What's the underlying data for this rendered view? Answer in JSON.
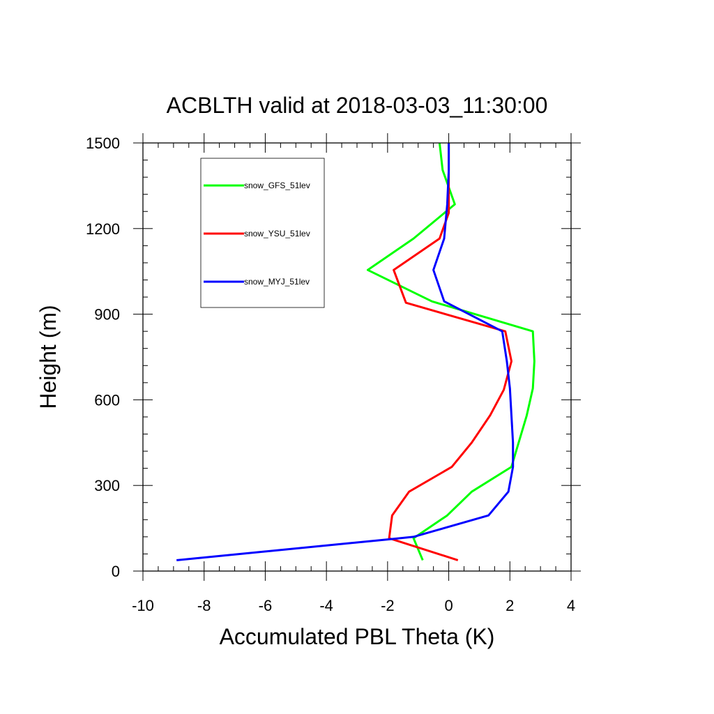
{
  "chart_data": {
    "type": "line",
    "title": "ACBLTH valid at 2018-03-03_11:30:00",
    "xlabel": "Accumulated PBL Theta (K)",
    "ylabel": "Height (m)",
    "xlim": [
      -10,
      4
    ],
    "ylim": [
      0,
      1500
    ],
    "xticks": [
      -10,
      -8,
      -6,
      -4,
      -2,
      0,
      2,
      4
    ],
    "yticks": [
      0,
      300,
      600,
      900,
      1200,
      1500
    ],
    "xtick_labels": [
      "-10",
      "-8",
      "-6",
      "-4",
      "-2",
      "0",
      "2",
      "4"
    ],
    "ytick_labels": [
      "0",
      "300",
      "600",
      "900",
      "1200",
      "1500"
    ],
    "legend_position": "top-left",
    "grid": false,
    "series": [
      {
        "name": "snow_GFS_51lev",
        "color": "#00ff00",
        "points": [
          [
            -0.85,
            38
          ],
          [
            -1.15,
            115
          ],
          [
            -0.05,
            195
          ],
          [
            0.75,
            278
          ],
          [
            2.05,
            365
          ],
          [
            2.55,
            545
          ],
          [
            2.75,
            640
          ],
          [
            2.8,
            735
          ],
          [
            2.75,
            840
          ],
          [
            -0.55,
            945
          ],
          [
            -2.65,
            1055
          ],
          [
            -1.15,
            1165
          ],
          [
            0.2,
            1285
          ],
          [
            -0.2,
            1405
          ],
          [
            -0.3,
            1500
          ]
        ]
      },
      {
        "name": "snow_YSU_51lev",
        "color": "#ff0000",
        "points": [
          [
            0.3,
            38
          ],
          [
            -1.95,
            115
          ],
          [
            -1.85,
            195
          ],
          [
            -1.3,
            278
          ],
          [
            0.1,
            365
          ],
          [
            0.75,
            450
          ],
          [
            1.35,
            545
          ],
          [
            1.8,
            635
          ],
          [
            2.05,
            735
          ],
          [
            1.85,
            840
          ],
          [
            -1.4,
            940
          ],
          [
            -1.8,
            1055
          ],
          [
            -0.3,
            1165
          ],
          [
            0.0,
            1255
          ],
          [
            0.0,
            1500
          ]
        ]
      },
      {
        "name": "snow_MYJ_51lev",
        "color": "#0000ff",
        "points": [
          [
            -8.9,
            38
          ],
          [
            -1.9,
            112
          ],
          [
            -1.15,
            120
          ],
          [
            1.3,
            195
          ],
          [
            1.95,
            278
          ],
          [
            2.1,
            365
          ],
          [
            2.1,
            450
          ],
          [
            2.05,
            545
          ],
          [
            2.0,
            640
          ],
          [
            1.9,
            735
          ],
          [
            1.75,
            840
          ],
          [
            -0.15,
            945
          ],
          [
            -0.5,
            1055
          ],
          [
            -0.15,
            1165
          ],
          [
            -0.05,
            1285
          ],
          [
            0.0,
            1405
          ],
          [
            0.0,
            1500
          ]
        ]
      }
    ]
  }
}
